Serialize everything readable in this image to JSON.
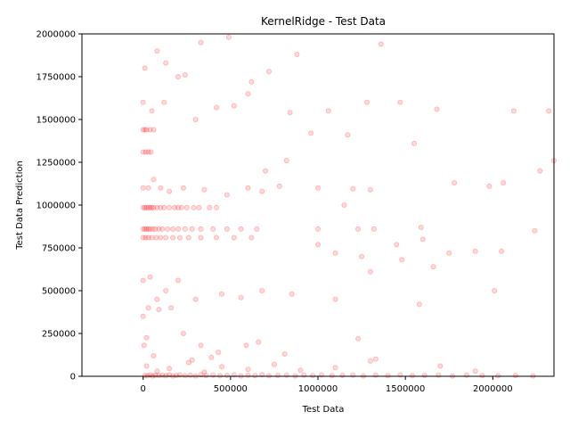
{
  "chart_data": {
    "type": "scatter",
    "title": "KernelRidge - Test Data",
    "xlabel": "Test Data",
    "ylabel": "Test Data Prediction",
    "xlim": [
      -350000,
      2350000
    ],
    "ylim": [
      0,
      2000000
    ],
    "x_ticks": [
      0,
      500000,
      1000000,
      1500000,
      2000000
    ],
    "x_tick_labels": [
      "0",
      "500000",
      "1000000",
      "1500000",
      "2000000"
    ],
    "y_ticks": [
      0,
      250000,
      500000,
      750000,
      1000000,
      1250000,
      1500000,
      1750000,
      2000000
    ],
    "y_tick_labels": [
      "0",
      "250000",
      "500000",
      "750000",
      "1000000",
      "1250000",
      "1500000",
      "1750000",
      "2000000"
    ],
    "marker_color": "#ff0000",
    "grid": false,
    "legend": "none",
    "points": [
      [
        10000,
        5000
      ],
      [
        25000,
        3000
      ],
      [
        40000,
        8000
      ],
      [
        55000,
        2000
      ],
      [
        70000,
        6000
      ],
      [
        90000,
        4000
      ],
      [
        110000,
        7000
      ],
      [
        130000,
        3000
      ],
      [
        150000,
        9000
      ],
      [
        170000,
        2000
      ],
      [
        190000,
        5000
      ],
      [
        210000,
        8000
      ],
      [
        240000,
        3000
      ],
      [
        270000,
        6000
      ],
      [
        300000,
        2000
      ],
      [
        330000,
        9000
      ],
      [
        360000,
        4000
      ],
      [
        400000,
        7000
      ],
      [
        440000,
        3000
      ],
      [
        480000,
        5000
      ],
      [
        520000,
        8000
      ],
      [
        560000,
        2000
      ],
      [
        600000,
        6000
      ],
      [
        640000,
        4000
      ],
      [
        680000,
        9000
      ],
      [
        720000,
        3000
      ],
      [
        770000,
        5000
      ],
      [
        820000,
        7000
      ],
      [
        870000,
        2000
      ],
      [
        920000,
        6000
      ],
      [
        970000,
        4000
      ],
      [
        1020000,
        8000
      ],
      [
        1080000,
        3000
      ],
      [
        1140000,
        5000
      ],
      [
        1200000,
        7000
      ],
      [
        1260000,
        2000
      ],
      [
        1330000,
        6000
      ],
      [
        1400000,
        4000
      ],
      [
        1470000,
        8000
      ],
      [
        1540000,
        3000
      ],
      [
        1610000,
        5000
      ],
      [
        1690000,
        7000
      ],
      [
        1770000,
        2000
      ],
      [
        1850000,
        6000
      ],
      [
        1940000,
        4000
      ],
      [
        2030000,
        3000
      ],
      [
        2130000,
        5000
      ],
      [
        2230000,
        2000
      ],
      [
        20000,
        60000
      ],
      [
        80000,
        30000
      ],
      [
        150000,
        45000
      ],
      [
        260000,
        80000
      ],
      [
        350000,
        25000
      ],
      [
        450000,
        55000
      ],
      [
        600000,
        40000
      ],
      [
        750000,
        70000
      ],
      [
        900000,
        35000
      ],
      [
        1100000,
        50000
      ],
      [
        1300000,
        90000
      ],
      [
        1700000,
        60000
      ],
      [
        1900000,
        30000
      ],
      [
        0,
        1440000
      ],
      [
        10000,
        1440000
      ],
      [
        20000,
        1440000
      ],
      [
        40000,
        1440000
      ],
      [
        60000,
        1440000
      ],
      [
        0,
        1310000
      ],
      [
        15000,
        1310000
      ],
      [
        30000,
        1310000
      ],
      [
        45000,
        1310000
      ],
      [
        0,
        985000
      ],
      [
        10000,
        985000
      ],
      [
        20000,
        985000
      ],
      [
        30000,
        985000
      ],
      [
        40000,
        985000
      ],
      [
        50000,
        985000
      ],
      [
        60000,
        985000
      ],
      [
        80000,
        985000
      ],
      [
        100000,
        985000
      ],
      [
        120000,
        985000
      ],
      [
        150000,
        985000
      ],
      [
        180000,
        985000
      ],
      [
        200000,
        985000
      ],
      [
        220000,
        985000
      ],
      [
        250000,
        985000
      ],
      [
        290000,
        985000
      ],
      [
        320000,
        985000
      ],
      [
        380000,
        985000
      ],
      [
        420000,
        985000
      ],
      [
        0,
        860000
      ],
      [
        10000,
        860000
      ],
      [
        20000,
        860000
      ],
      [
        30000,
        860000
      ],
      [
        40000,
        860000
      ],
      [
        55000,
        860000
      ],
      [
        70000,
        860000
      ],
      [
        90000,
        860000
      ],
      [
        110000,
        860000
      ],
      [
        140000,
        860000
      ],
      [
        170000,
        860000
      ],
      [
        200000,
        860000
      ],
      [
        240000,
        860000
      ],
      [
        280000,
        860000
      ],
      [
        330000,
        860000
      ],
      [
        400000,
        860000
      ],
      [
        480000,
        860000
      ],
      [
        560000,
        860000
      ],
      [
        650000,
        860000
      ],
      [
        1000000,
        860000
      ],
      [
        1230000,
        860000
      ],
      [
        1320000,
        860000
      ],
      [
        0,
        810000
      ],
      [
        15000,
        810000
      ],
      [
        30000,
        810000
      ],
      [
        50000,
        810000
      ],
      [
        75000,
        810000
      ],
      [
        100000,
        810000
      ],
      [
        130000,
        810000
      ],
      [
        170000,
        810000
      ],
      [
        210000,
        810000
      ],
      [
        260000,
        810000
      ],
      [
        330000,
        810000
      ],
      [
        420000,
        810000
      ],
      [
        520000,
        810000
      ],
      [
        620000,
        810000
      ],
      [
        0,
        1100000
      ],
      [
        30000,
        1100000
      ],
      [
        60000,
        1150000
      ],
      [
        100000,
        1100000
      ],
      [
        150000,
        1080000
      ],
      [
        230000,
        1100000
      ],
      [
        350000,
        1090000
      ],
      [
        480000,
        1060000
      ],
      [
        600000,
        1100000
      ],
      [
        680000,
        1080000
      ],
      [
        780000,
        1110000
      ],
      [
        1000000,
        1100000
      ],
      [
        1200000,
        1095000
      ],
      [
        1300000,
        1090000
      ],
      [
        0,
        1600000
      ],
      [
        50000,
        1550000
      ],
      [
        120000,
        1600000
      ],
      [
        200000,
        1750000
      ],
      [
        300000,
        1500000
      ],
      [
        420000,
        1570000
      ],
      [
        520000,
        1580000
      ],
      [
        620000,
        1720000
      ],
      [
        840000,
        1540000
      ],
      [
        1060000,
        1550000
      ],
      [
        1280000,
        1600000
      ],
      [
        1470000,
        1600000
      ],
      [
        1680000,
        1560000
      ],
      [
        10000,
        1800000
      ],
      [
        80000,
        1900000
      ],
      [
        130000,
        1830000
      ],
      [
        240000,
        1760000
      ],
      [
        330000,
        1950000
      ],
      [
        490000,
        1980000
      ],
      [
        600000,
        1650000
      ],
      [
        720000,
        1780000
      ],
      [
        880000,
        1880000
      ],
      [
        1360000,
        1940000
      ],
      [
        0,
        560000
      ],
      [
        40000,
        580000
      ],
      [
        80000,
        450000
      ],
      [
        130000,
        500000
      ],
      [
        200000,
        560000
      ],
      [
        300000,
        450000
      ],
      [
        450000,
        480000
      ],
      [
        560000,
        460000
      ],
      [
        680000,
        500000
      ],
      [
        850000,
        480000
      ],
      [
        1100000,
        450000
      ],
      [
        1580000,
        420000
      ],
      [
        2010000,
        500000
      ],
      [
        0,
        350000
      ],
      [
        30000,
        400000
      ],
      [
        90000,
        390000
      ],
      [
        160000,
        400000
      ],
      [
        230000,
        250000
      ],
      [
        330000,
        180000
      ],
      [
        430000,
        140000
      ],
      [
        590000,
        180000
      ],
      [
        660000,
        200000
      ],
      [
        810000,
        130000
      ],
      [
        1230000,
        220000
      ],
      [
        1330000,
        100000
      ],
      [
        5000,
        180000
      ],
      [
        20000,
        225000
      ],
      [
        60000,
        120000
      ],
      [
        280000,
        95000
      ],
      [
        390000,
        110000
      ],
      [
        700000,
        1200000
      ],
      [
        820000,
        1260000
      ],
      [
        960000,
        1420000
      ],
      [
        1170000,
        1410000
      ],
      [
        1550000,
        1360000
      ],
      [
        1980000,
        1110000
      ],
      [
        2060000,
        1130000
      ],
      [
        2270000,
        1200000
      ],
      [
        2350000,
        1260000
      ],
      [
        1000000,
        770000
      ],
      [
        1100000,
        720000
      ],
      [
        1250000,
        700000
      ],
      [
        1450000,
        770000
      ],
      [
        1600000,
        800000
      ],
      [
        1750000,
        720000
      ],
      [
        1900000,
        730000
      ],
      [
        2050000,
        730000
      ],
      [
        2240000,
        850000
      ],
      [
        1150000,
        1000000
      ],
      [
        1300000,
        610000
      ],
      [
        1480000,
        680000
      ],
      [
        1590000,
        870000
      ],
      [
        1660000,
        640000
      ],
      [
        1780000,
        1130000
      ],
      [
        2120000,
        1550000
      ],
      [
        2320000,
        1550000
      ]
    ]
  }
}
